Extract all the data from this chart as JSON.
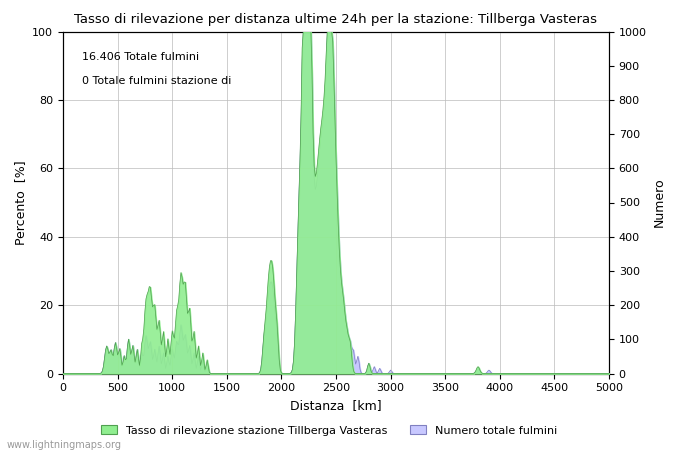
{
  "title": "Tasso di rilevazione per distanza ultime 24h per la stazione: Tillberga Vasteras",
  "xlabel": "Distanza  [km]",
  "ylabel_left": "Percento  [%]",
  "ylabel_right": "Numero",
  "annotation_line1": "16.406 Totale fulmini",
  "annotation_line2": "0 Totale fulmini stazione di",
  "xlim": [
    0,
    5000
  ],
  "ylim_left": [
    0,
    100
  ],
  "ylim_right": [
    0,
    1000
  ],
  "xticks": [
    0,
    500,
    1000,
    1500,
    2000,
    2500,
    3000,
    3500,
    4000,
    4500,
    5000
  ],
  "yticks_left": [
    0,
    20,
    40,
    60,
    80,
    100
  ],
  "yticks_right": [
    0,
    100,
    200,
    300,
    400,
    500,
    600,
    700,
    800,
    900,
    1000
  ],
  "legend_label_green": "Tasso di rilevazione stazione Tillberga Vasteras",
  "legend_label_blue": "Numero totale fulmini",
  "watermark": "www.lightningmaps.org",
  "fill_green": "#90EE90",
  "fill_blue": "#C8C8FF",
  "line_blue": "#8080C0",
  "line_green": "#50A050",
  "background_color": "#FFFFFF",
  "grid_color": "#BBBBBB"
}
